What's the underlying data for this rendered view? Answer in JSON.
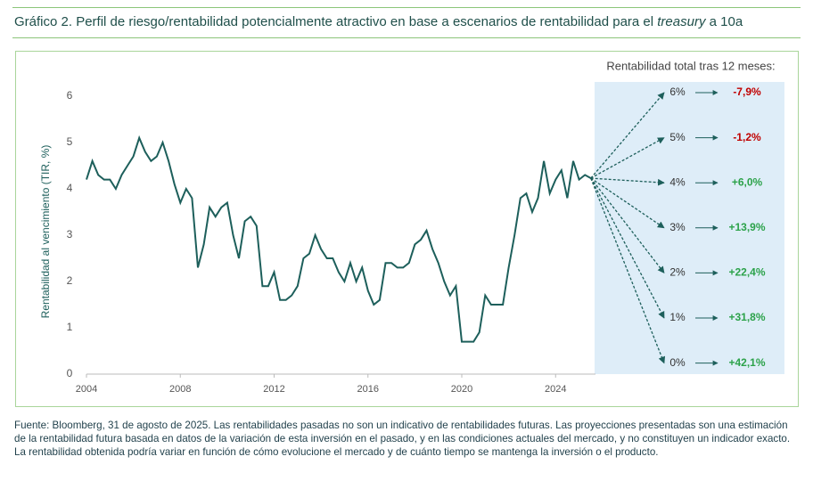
{
  "chart_data": {
    "type": "line",
    "title": [
      "Gráfico 2. Perfil de riesgo/rentabilidad potencialmente atractivo en base a escenarios de rentabilidad para el",
      "treasury",
      "a 10a"
    ],
    "ylabel": "Rentabilidad al vencimiento (TIR, %)",
    "xlim": [
      2004,
      2025.7
    ],
    "xticks": [
      2004,
      2008,
      2012,
      2016,
      2020,
      2024
    ],
    "ylim": [
      0,
      6
    ],
    "yticks": [
      0,
      1,
      2,
      3,
      4,
      5,
      6
    ],
    "color": "#1d5f5b",
    "x": [
      2004,
      2004.25,
      2004.5,
      2004.75,
      2005,
      2005.25,
      2005.5,
      2005.75,
      2006,
      2006.25,
      2006.5,
      2006.75,
      2007,
      2007.25,
      2007.5,
      2007.75,
      2008,
      2008.25,
      2008.5,
      2008.75,
      2009,
      2009.25,
      2009.5,
      2009.75,
      2010,
      2010.25,
      2010.5,
      2010.75,
      2011,
      2011.25,
      2011.5,
      2011.75,
      2012,
      2012.25,
      2012.5,
      2012.75,
      2013,
      2013.25,
      2013.5,
      2013.75,
      2014,
      2014.25,
      2014.5,
      2014.75,
      2015,
      2015.25,
      2015.5,
      2015.75,
      2016,
      2016.25,
      2016.5,
      2016.75,
      2017,
      2017.25,
      2017.5,
      2017.75,
      2018,
      2018.25,
      2018.5,
      2018.75,
      2019,
      2019.25,
      2019.5,
      2019.75,
      2020,
      2020.25,
      2020.5,
      2020.75,
      2021,
      2021.25,
      2021.5,
      2021.75,
      2022,
      2022.25,
      2022.5,
      2022.75,
      2023,
      2023.25,
      2023.5,
      2023.75,
      2024,
      2024.25,
      2024.5,
      2024.75,
      2025,
      2025.25,
      2025.5
    ],
    "values": [
      4.2,
      4.6,
      4.3,
      4.2,
      4.2,
      4.0,
      4.3,
      4.5,
      4.7,
      5.1,
      4.8,
      4.6,
      4.7,
      5.0,
      4.6,
      4.1,
      3.7,
      4.0,
      3.8,
      2.3,
      2.8,
      3.6,
      3.4,
      3.6,
      3.7,
      3.0,
      2.5,
      3.3,
      3.4,
      3.2,
      1.9,
      1.9,
      2.2,
      1.6,
      1.6,
      1.7,
      1.9,
      2.5,
      2.6,
      3.0,
      2.7,
      2.5,
      2.5,
      2.2,
      2.0,
      2.4,
      2.0,
      2.3,
      1.8,
      1.5,
      1.6,
      2.4,
      2.4,
      2.3,
      2.3,
      2.4,
      2.8,
      2.9,
      3.1,
      2.7,
      2.4,
      2.0,
      1.7,
      1.9,
      0.7,
      0.7,
      0.7,
      0.9,
      1.7,
      1.5,
      1.5,
      1.5,
      2.3,
      3.0,
      3.8,
      3.9,
      3.5,
      3.8,
      4.6,
      3.9,
      4.2,
      4.4,
      3.8,
      4.6,
      4.2,
      4.3,
      4.23
    ],
    "scenario_title": "Rentabilidad total tras 12 meses:",
    "negative_color": "#c00000",
    "positive_color": "#2ca24a",
    "scenarios": [
      {
        "yield": 6,
        "yield_label": "6%",
        "return": -7.9,
        "return_label": "-7,9%"
      },
      {
        "yield": 5,
        "yield_label": "5%",
        "return": -1.2,
        "return_label": "-1,2%"
      },
      {
        "yield": 4,
        "yield_label": "4%",
        "return": 6.0,
        "return_label": "+6,0%"
      },
      {
        "yield": 3,
        "yield_label": "3%",
        "return": 13.9,
        "return_label": "+13,9%"
      },
      {
        "yield": 2,
        "yield_label": "2%",
        "return": 22.4,
        "return_label": "+22,4%"
      },
      {
        "yield": 1,
        "yield_label": "1%",
        "return": 31.8,
        "return_label": "+31,8%"
      },
      {
        "yield": 0,
        "yield_label": "0%",
        "return": 42.1,
        "return_label": "+42,1%"
      }
    ],
    "source": "Fuente: Bloomberg, 31 de agosto de 2025. Las rentabilidades pasadas no son un indicativo de rentabilidades futuras.  Las proyecciones presentadas son una estimación de la rentabilidad futura basada en datos de la variación de esta inversión en el pasado, y en las condiciones actuales del mercado, y no constituyen un indicador exacto. La rentabilidad obtenida podría variar en función de cómo evolucione el mercado y de cuánto tiempo se mantenga la inversión o el producto."
  }
}
